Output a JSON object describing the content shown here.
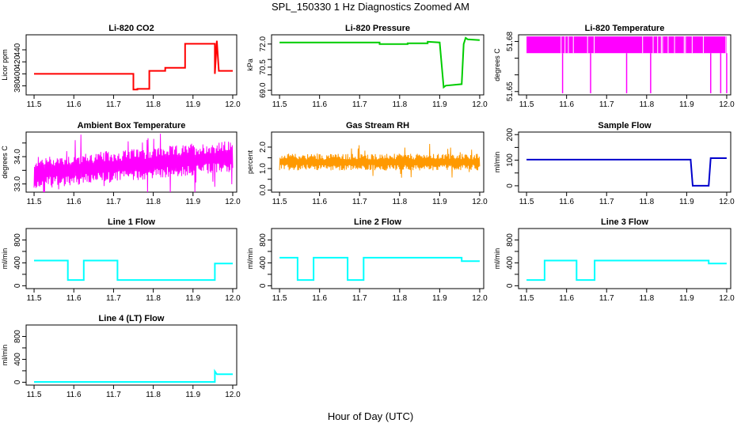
{
  "figure": {
    "title": "SPL_150330  1 Hz Diagnostics Zoomed AM",
    "xlabel": "Hour of Day (UTC)"
  },
  "chart_data": [
    {
      "type": "line",
      "title": "Li-820 CO2",
      "ylabel": "Licor ppm",
      "color": "#ff0000",
      "xlim": [
        11.48,
        12.01
      ],
      "ylim": [
        365,
        465
      ],
      "xticks": [
        "11.5",
        "11.6",
        "11.7",
        "11.8",
        "11.9",
        "12.0"
      ],
      "yticks": [
        "380",
        "400",
        "420",
        "440"
      ],
      "style": "step",
      "x": [
        11.5,
        11.75,
        11.75,
        11.76,
        11.76,
        11.79,
        11.79,
        11.83,
        11.83,
        11.88,
        11.88,
        11.955,
        11.955,
        11.96,
        11.965,
        12.0
      ],
      "y": [
        400,
        400,
        374,
        374,
        375,
        375,
        405,
        405,
        410,
        410,
        450,
        450,
        400,
        455,
        405,
        405
      ]
    },
    {
      "type": "line",
      "title": "Li-820 Pressure",
      "ylabel": "kPa",
      "color": "#00cc00",
      "xlim": [
        11.48,
        12.01
      ],
      "ylim": [
        68.7,
        72.6
      ],
      "xticks": [
        "11.5",
        "11.6",
        "11.7",
        "11.8",
        "11.9",
        "12.0"
      ],
      "yticks": [
        "69.0",
        "70.5",
        "72.0"
      ],
      "yextra": [
        "70.0",
        "71.0"
      ],
      "style": "step",
      "x": [
        11.5,
        11.75,
        11.75,
        11.82,
        11.82,
        11.87,
        11.87,
        11.9,
        11.91,
        11.915,
        11.955,
        11.96,
        11.965,
        11.97,
        12.0
      ],
      "y": [
        72.1,
        72.1,
        72.0,
        72.0,
        72.05,
        72.05,
        72.15,
        72.1,
        69.2,
        69.3,
        69.4,
        72.0,
        72.4,
        72.3,
        72.25
      ]
    },
    {
      "type": "area",
      "title": "Li-820 Temperature",
      "ylabel": "degrees C",
      "color": "#ff00ff",
      "xlim": [
        11.48,
        12.01
      ],
      "ylim": [
        51.648,
        51.684
      ],
      "xticks": [
        "11.5",
        "11.6",
        "11.7",
        "11.8",
        "11.9",
        "12.0"
      ],
      "yticks": [
        "51.65",
        "51.68"
      ],
      "yextra": [
        "51.66",
        "51.67"
      ],
      "band": [
        51.673,
        51.683
      ],
      "spikes": [
        11.59,
        11.66,
        11.75,
        11.81,
        11.96,
        11.985,
        12.0
      ],
      "spike_low": 51.649
    },
    {
      "type": "noise",
      "title": "Ambient Box Temperature",
      "ylabel": "degrees C",
      "color": "#ff00ff",
      "xlim": [
        11.48,
        12.01
      ],
      "ylim": [
        32.7,
        34.9
      ],
      "xticks": [
        "11.5",
        "11.6",
        "11.7",
        "11.8",
        "11.9",
        "12.0"
      ],
      "yticks": [
        "33.0",
        "34.0"
      ],
      "yextra": [
        "33.5",
        "34.5"
      ],
      "center": [
        [
          11.5,
          33.4
        ],
        [
          12.0,
          34.0
        ]
      ],
      "amplitude": 0.45
    },
    {
      "type": "noise",
      "title": "Gas Stream RH",
      "ylabel": "percent",
      "color": "#ff9900",
      "xlim": [
        11.48,
        12.01
      ],
      "ylim": [
        -0.1,
        2.7
      ],
      "xticks": [
        "11.5",
        "11.6",
        "11.7",
        "11.8",
        "11.9",
        "12.0"
      ],
      "yticks": [
        "0.0",
        "1.0",
        "2.0"
      ],
      "yextra": [
        "0.5",
        "1.5"
      ],
      "center": [
        [
          11.5,
          1.3
        ],
        [
          12.0,
          1.3
        ]
      ],
      "amplitude": 0.3
    },
    {
      "type": "line",
      "title": "Sample Flow",
      "ylabel": "ml/min",
      "color": "#0000cc",
      "xlim": [
        11.48,
        12.01
      ],
      "ylim": [
        -25,
        210
      ],
      "xticks": [
        "11.5",
        "11.6",
        "11.7",
        "11.8",
        "11.9",
        "12.0"
      ],
      "yticks": [
        "0",
        "100",
        "200"
      ],
      "yextra": [
        "50",
        "150"
      ],
      "style": "step",
      "x": [
        11.5,
        11.91,
        11.915,
        11.955,
        11.96,
        12.0
      ],
      "y": [
        102,
        102,
        0,
        0,
        108,
        108
      ]
    },
    {
      "type": "line",
      "title": "Line 1 Flow",
      "ylabel": "ml/min",
      "color": "#00ffff",
      "xlim": [
        11.48,
        12.01
      ],
      "ylim": [
        -50,
        1000
      ],
      "xticks": [
        "11.5",
        "11.6",
        "11.7",
        "11.8",
        "11.9",
        "12.0"
      ],
      "yticks": [
        "0",
        "400",
        "800"
      ],
      "yextra": [
        "200",
        "600"
      ],
      "style": "step",
      "x": [
        11.5,
        11.585,
        11.585,
        11.625,
        11.625,
        11.71,
        11.71,
        11.955,
        11.955,
        12.0
      ],
      "y": [
        440,
        440,
        100,
        100,
        440,
        440,
        100,
        100,
        390,
        390
      ]
    },
    {
      "type": "line",
      "title": "Line 2 Flow",
      "ylabel": "ml/min",
      "color": "#00ffff",
      "xlim": [
        11.48,
        12.01
      ],
      "ylim": [
        -50,
        1000
      ],
      "xticks": [
        "11.5",
        "11.6",
        "11.7",
        "11.8",
        "11.9",
        "12.0"
      ],
      "yticks": [
        "0",
        "400",
        "800"
      ],
      "yextra": [
        "200",
        "600"
      ],
      "style": "step",
      "x": [
        11.5,
        11.545,
        11.545,
        11.585,
        11.585,
        11.67,
        11.67,
        11.71,
        11.71,
        11.955,
        11.955,
        12.0
      ],
      "y": [
        490,
        490,
        100,
        100,
        490,
        490,
        100,
        100,
        490,
        490,
        430,
        430
      ]
    },
    {
      "type": "line",
      "title": "Line 3 Flow",
      "ylabel": "ml/min",
      "color": "#00ffff",
      "xlim": [
        11.48,
        12.01
      ],
      "ylim": [
        -50,
        1000
      ],
      "xticks": [
        "11.5",
        "11.6",
        "11.7",
        "11.8",
        "11.9",
        "12.0"
      ],
      "yticks": [
        "0",
        "400",
        "800"
      ],
      "yextra": [
        "200",
        "600"
      ],
      "style": "step",
      "x": [
        11.5,
        11.545,
        11.545,
        11.625,
        11.625,
        11.67,
        11.67,
        11.955,
        11.955,
        12.0
      ],
      "y": [
        100,
        100,
        440,
        440,
        100,
        100,
        440,
        440,
        390,
        390
      ]
    },
    {
      "type": "line",
      "title": "Line 4 (LT) Flow",
      "ylabel": "ml/min",
      "color": "#00ffff",
      "xlim": [
        11.48,
        12.01
      ],
      "ylim": [
        -50,
        1000
      ],
      "xticks": [
        "11.5",
        "11.6",
        "11.7",
        "11.8",
        "11.9",
        "12.0"
      ],
      "yticks": [
        "0",
        "400",
        "800"
      ],
      "yextra": [
        "200",
        "600"
      ],
      "style": "step",
      "x": [
        11.5,
        11.955,
        11.955,
        11.96,
        12.0
      ],
      "y": [
        5,
        5,
        190,
        140,
        140
      ]
    }
  ]
}
